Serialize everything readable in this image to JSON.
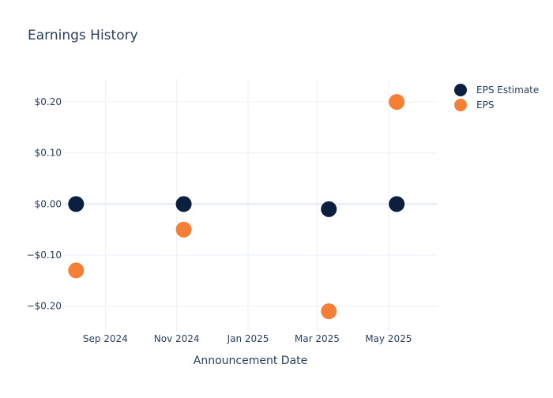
{
  "chart_data": {
    "type": "scatter",
    "title": "Earnings History",
    "xlabel": "Announcement Date",
    "ylabel": "",
    "x_ticks": [
      "2024-09-01",
      "2024-11-01",
      "2025-01-01",
      "2025-03-01",
      "2025-05-01"
    ],
    "x_tick_labels": [
      "Sep 2024",
      "Nov 2024",
      "Jan 2025",
      "Mar 2025",
      "May 2025"
    ],
    "x_range": [
      "2024-07-27",
      "2025-06-12"
    ],
    "y_ticks": [
      0.2,
      0.1,
      0.0,
      -0.1,
      -0.2
    ],
    "y_tick_labels": [
      "$0.20",
      "$0.10",
      "$0.00",
      "−$0.10",
      "−$0.20"
    ],
    "ylim": [
      -0.25,
      0.245
    ],
    "grid": true,
    "legend_position": "top-right",
    "series": [
      {
        "name": "EPS Estimate",
        "color": "#0b1f3f",
        "points": [
          {
            "x": "2024-08-07",
            "y": 0.0
          },
          {
            "x": "2024-11-07",
            "y": 0.0
          },
          {
            "x": "2025-03-11",
            "y": -0.01
          },
          {
            "x": "2025-05-08",
            "y": 0.0
          }
        ]
      },
      {
        "name": "EPS",
        "color": "#f47f35",
        "points": [
          {
            "x": "2024-08-07",
            "y": -0.13
          },
          {
            "x": "2024-11-07",
            "y": -0.05
          },
          {
            "x": "2025-03-11",
            "y": -0.21
          },
          {
            "x": "2025-05-08",
            "y": 0.2
          }
        ]
      }
    ]
  }
}
